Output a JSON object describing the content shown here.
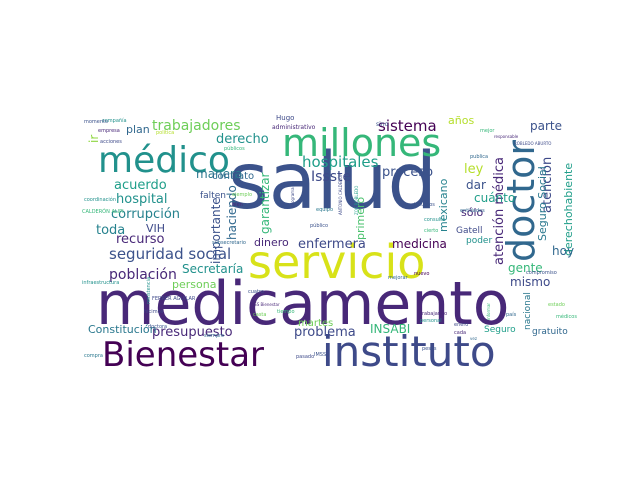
{
  "words": [
    {
      "text": "salud",
      "color": "#3b528b"
    },
    {
      "text": "medicamento",
      "color": "#482878"
    },
    {
      "text": "servicio",
      "color": "#d8e219"
    },
    {
      "text": "instituto",
      "color": "#3e4a89"
    },
    {
      "text": "Bienestar",
      "color": "#440154"
    },
    {
      "text": "millones",
      "color": "#35b779"
    },
    {
      "text": "médico",
      "color": "#21918c"
    },
    {
      "text": "doctor",
      "color": "#31688e"
    },
    {
      "text": "hospitales",
      "color": "#1f9e89"
    },
    {
      "text": "trabajadores",
      "color": "#6ece58"
    },
    {
      "text": "sistema",
      "color": "#440154"
    },
    {
      "text": "seguridad social",
      "color": "#3b528b"
    },
    {
      "text": "población",
      "color": "#482878"
    },
    {
      "text": "Issste",
      "color": "#3e4a89"
    },
    {
      "text": "derecho",
      "color": "#21918c"
    },
    {
      "text": "acuerdo",
      "color": "#1f9e89"
    },
    {
      "text": "hospital",
      "color": "#21918c"
    },
    {
      "text": "corrupción",
      "color": "#26828e"
    },
    {
      "text": "proceso",
      "color": "#3b528b"
    },
    {
      "text": "atención médica",
      "color": "#482878"
    },
    {
      "text": "atención",
      "color": "#3e4a89"
    },
    {
      "text": "Seguro Social",
      "color": "#2a788e"
    },
    {
      "text": "derechohabiente",
      "color": "#1f9e89"
    },
    {
      "text": "gente",
      "color": "#35b779"
    },
    {
      "text": "parte",
      "color": "#3b528b"
    },
    {
      "text": "años",
      "color": "#b5de2b"
    },
    {
      "text": "plan",
      "color": "#31688e"
    },
    {
      "text": "ir",
      "color": "#90d743"
    },
    {
      "text": "toda",
      "color": "#26828e"
    },
    {
      "text": "VIH",
      "color": "#3e4a89"
    },
    {
      "text": "recurso",
      "color": "#482878"
    },
    {
      "text": "manera",
      "color": "#2a788e"
    },
    {
      "text": "garantizar",
      "color": "#35b779"
    },
    {
      "text": "importante",
      "color": "#3b528b"
    },
    {
      "text": "haciendo",
      "color": "#31688e"
    },
    {
      "text": "Secretaría",
      "color": "#21918c"
    },
    {
      "text": "persona",
      "color": "#6ece58"
    },
    {
      "text": "dinero",
      "color": "#482878"
    },
    {
      "text": "enfermera",
      "color": "#3e4a89"
    },
    {
      "text": "medicina",
      "color": "#440154"
    },
    {
      "text": "mismo",
      "color": "#3e4a89"
    },
    {
      "text": "hoy",
      "color": "#31688e"
    },
    {
      "text": "cuánto",
      "color": "#1f9e89"
    },
    {
      "text": "ley",
      "color": "#b5de2b"
    },
    {
      "text": "dar",
      "color": "#3b528b"
    },
    {
      "text": "sólo",
      "color": "#482878"
    },
    {
      "text": "mexicano",
      "color": "#26828e"
    },
    {
      "text": "presupuesto",
      "color": "#482878"
    },
    {
      "text": "problema",
      "color": "#3e4a89"
    },
    {
      "text": "INSABI",
      "color": "#35b779"
    },
    {
      "text": "Constitución",
      "color": "#2a788e"
    },
    {
      "text": "martes",
      "color": "#6ece58"
    },
    {
      "text": "primero",
      "color": "#4ac16d"
    },
    {
      "text": "contrato",
      "color": "#31688e"
    },
    {
      "text": "falten",
      "color": "#3b528b"
    },
    {
      "text": "Gatell",
      "color": "#3e4a89"
    },
    {
      "text": "poder",
      "color": "#21918c"
    },
    {
      "text": "nacional",
      "color": "#2a788e"
    },
    {
      "text": "Seguro",
      "color": "#1f9e89"
    },
    {
      "text": "gratuito",
      "color": "#31688e"
    },
    {
      "text": "Hugo",
      "color": "#3e4a89"
    },
    {
      "text": "administrativo",
      "color": "#482878"
    },
    {
      "text": "sino",
      "color": "#3b528b"
    },
    {
      "text": "compañía",
      "color": "#21918c"
    },
    {
      "text": "momento",
      "color": "#3b528b"
    },
    {
      "text": "empresa",
      "color": "#482878"
    },
    {
      "text": "acciones",
      "color": "#3e4a89"
    },
    {
      "text": "política",
      "color": "#b5de2b"
    },
    {
      "text": "públicos",
      "color": "#35b779"
    },
    {
      "text": "coordinación",
      "color": "#21918c"
    },
    {
      "text": "CALDERÓN ALIPI",
      "color": "#35b779"
    },
    {
      "text": "publica",
      "color": "#31688e"
    },
    {
      "text": "ROBLEDO ABURTO",
      "color": "#3e4a89"
    },
    {
      "text": "responsable",
      "color": "#482878"
    },
    {
      "text": "mejor",
      "color": "#35b779"
    },
    {
      "text": "entidades",
      "color": "#31688e"
    },
    {
      "text": "insumos",
      "color": "#3b528b"
    },
    {
      "text": "consulta",
      "color": "#21918c"
    },
    {
      "text": "ejemplo",
      "color": "#6ece58"
    },
    {
      "text": "bien",
      "color": "#482878"
    },
    {
      "text": "programa",
      "color": "#3e4a89"
    },
    {
      "text": "equipo",
      "color": "#2a788e"
    },
    {
      "text": "público",
      "color": "#3b528b"
    },
    {
      "text": "ZOÉ ROBLEDO",
      "color": "#1f9e89"
    },
    {
      "text": "ANTONIO CALDERÓN",
      "color": "#3e4a89"
    },
    {
      "text": "cierto",
      "color": "#35b779"
    },
    {
      "text": "subsecretario",
      "color": "#31688e"
    },
    {
      "text": "FERRER AGUILAR",
      "color": "#3e4a89"
    },
    {
      "text": "infraestructura",
      "color": "#21918c"
    },
    {
      "text": "nuevo",
      "color": "#440154"
    },
    {
      "text": "compromiso",
      "color": "#3b528b"
    },
    {
      "text": "mejorar",
      "color": "#31688e"
    },
    {
      "text": "resistencia",
      "color": "#21918c"
    },
    {
      "text": "cuatro",
      "color": "#3b528b"
    },
    {
      "text": "casta",
      "color": "#6ece58"
    },
    {
      "text": "tiempo",
      "color": "#35b779"
    },
    {
      "text": "trabajando",
      "color": "#482878"
    },
    {
      "text": "hicimos",
      "color": "#3e4a89"
    },
    {
      "text": "doctora",
      "color": "#3b528b"
    },
    {
      "text": "siempre",
      "color": "#31688e"
    },
    {
      "text": "pasado",
      "color": "#3e4a89"
    },
    {
      "text": "INSS Bienestar",
      "color": "#482878"
    },
    {
      "text": "pesos",
      "color": "#3b528b"
    },
    {
      "text": "compra",
      "color": "#2a788e"
    },
    {
      "text": "personal",
      "color": "#21918c"
    },
    {
      "text": "enero",
      "color": "#3e4a89"
    },
    {
      "text": "informar",
      "color": "#35b779"
    },
    {
      "text": "país",
      "color": "#31688e"
    },
    {
      "text": "estado",
      "color": "#6ece58"
    },
    {
      "text": "médicos",
      "color": "#35b779"
    },
    {
      "text": "cada",
      "color": "#482878"
    },
    {
      "text": "vez",
      "color": "#31688e"
    },
    {
      "text": "IMSS",
      "color": "#3b528b"
    }
  ]
}
